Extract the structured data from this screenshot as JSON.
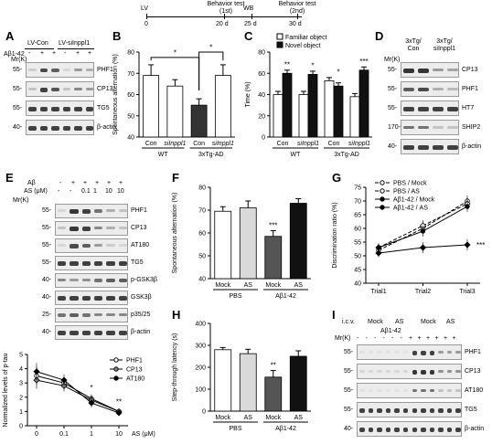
{
  "panels": {
    "A": {
      "label": "A",
      "groups": [
        "LV-Con",
        "LV-siInppl1"
      ],
      "abeta": "Aβ1-42",
      "mk": "Mr(K)",
      "markers": [
        "PHF1",
        "CP13",
        "TG5",
        "β-actin"
      ],
      "mw": [
        "55-",
        "55-",
        "55-",
        "40-"
      ],
      "signs": [
        "-",
        "+",
        "+",
        "-",
        "+",
        "+"
      ]
    },
    "timeline": {
      "points": [
        "0",
        "20 d",
        "25 d",
        "30 d"
      ],
      "labels": [
        "LV",
        "Behavior test (1st)",
        "WB",
        "Behavior test (2nd)"
      ]
    },
    "B": {
      "label": "B",
      "ylabel": "Spontaneous alternation (%)",
      "categories": [
        "Con",
        "siInppl1",
        "Con",
        "siInppl1"
      ],
      "groups": [
        "WT",
        "3xTg-AD"
      ]
    },
    "C": {
      "label": "C",
      "ylabel": "Time (%)",
      "legend": [
        "Familiar object",
        "Novel object"
      ],
      "categories": [
        "Con",
        "siInppl1",
        "Con",
        "siInppl1"
      ],
      "groups": [
        "WT",
        "3xTg-AD"
      ],
      "stars": [
        "**",
        "*",
        "*",
        "***"
      ]
    },
    "D": {
      "label": "D",
      "groups": [
        "3xTg/ Con",
        "3xTg/ siInppl1"
      ],
      "mk": "Mr(K)",
      "markers": [
        "CP13",
        "PHF1",
        "HT7",
        "SHIP2",
        "β-actin"
      ],
      "mw": [
        "55-",
        "55-",
        "55-",
        "170-",
        "40-"
      ]
    },
    "E": {
      "label": "E",
      "abeta": "Aβ",
      "as": "AS (μM)",
      "mk": "Mr(K)",
      "signs": [
        "-",
        "+",
        "+",
        "+",
        "+",
        "+"
      ],
      "doses": [
        "-",
        "-",
        "0.1",
        "1",
        "10",
        "10"
      ],
      "markers": [
        "PHF1",
        "CP13",
        "AT180",
        "TG5",
        "p-GSK3β",
        "GSK3β",
        "p35/25",
        "β-actin"
      ],
      "mw": [
        "55-",
        "55-",
        "55-",
        "55-",
        "40-",
        "40-",
        "25-",
        "40-"
      ]
    },
    "Eline": {
      "ylabel": "Normalized levels of p-tau",
      "xlabel": "AS (μM)",
      "legend": [
        "PHF1",
        "CP13",
        "AT180"
      ],
      "stars": [
        "*",
        "**"
      ]
    },
    "F": {
      "label": "F",
      "ylabel": "Spontaneous alternation (%)",
      "categories": [
        "Mock",
        "AS",
        "Mock",
        "AS"
      ],
      "groups": [
        "PBS",
        "Aβ1-42"
      ],
      "stars": [
        "***"
      ]
    },
    "G": {
      "label": "G",
      "ylabel": "Discrimination ratio (%)",
      "legend": [
        "PBS / Mock",
        "PBS / AS",
        "Aβ1-42 / Mock",
        "Aβ1-42 / AS"
      ],
      "stars": [
        "***"
      ]
    },
    "H": {
      "label": "H",
      "ylabel": "Step-through latency (s)",
      "categories": [
        "Mock",
        "AS",
        "Mock",
        "AS"
      ],
      "groups": [
        "PBS",
        "Aβ1-42"
      ],
      "stars": [
        "**"
      ]
    },
    "I": {
      "label": "I",
      "icv": "i.c.v.",
      "mk": "Mr(K)",
      "abeta": "Aβ1-42",
      "treat": [
        "Mock",
        "AS",
        "Mock",
        "AS"
      ],
      "markers": [
        "PHF1",
        "CP13",
        "AT180",
        "TG5",
        "β-actin"
      ],
      "mw": [
        "55-",
        "55-",
        "55-",
        "55-",
        "40-"
      ]
    }
  },
  "chart_data": [
    {
      "type": "bar",
      "id": "B",
      "categories": [
        "Con",
        "siInppl1",
        "Con",
        "siInppl1"
      ],
      "values": [
        69,
        64,
        55,
        69
      ],
      "errors": [
        5,
        3,
        3,
        5
      ],
      "ylim": [
        40,
        80
      ],
      "yticks": [
        40,
        50,
        60,
        70,
        80
      ],
      "stars": [
        "*",
        "*"
      ]
    },
    {
      "type": "bar",
      "id": "C",
      "categories": [
        "Con",
        "siInppl1",
        "Con",
        "siInppl1"
      ],
      "series": [
        {
          "name": "Familiar object",
          "values": [
            40,
            40,
            53,
            38
          ]
        },
        {
          "name": "Novel object",
          "values": [
            60,
            59,
            48,
            63
          ]
        }
      ],
      "errors": [
        [
          3,
          3,
          3,
          3
        ],
        [
          3,
          3,
          3,
          3
        ]
      ],
      "ylim": [
        0,
        80
      ],
      "yticks": [
        0,
        20,
        40,
        60,
        80
      ]
    },
    {
      "type": "line",
      "id": "Eline",
      "x": [
        "0",
        "0.1",
        "1",
        "10"
      ],
      "series": [
        {
          "name": "PHF1",
          "values": [
            3.5,
            3.0,
            1.9,
            1.0
          ]
        },
        {
          "name": "CP13",
          "values": [
            3.2,
            2.8,
            1.8,
            1.0
          ]
        },
        {
          "name": "AT180",
          "values": [
            3.8,
            3.2,
            1.6,
            0.9
          ]
        }
      ],
      "errors": [
        0.6,
        0.4,
        0.3,
        0.1
      ],
      "ylim": [
        0,
        5
      ],
      "yticks": [
        0,
        1,
        2,
        3,
        4,
        5
      ],
      "xticks": [
        "0",
        "0.1",
        "1",
        "10"
      ]
    },
    {
      "type": "bar",
      "id": "F",
      "categories": [
        "Mock",
        "AS",
        "Mock",
        "AS"
      ],
      "values": [
        69.5,
        71,
        58.5,
        73
      ],
      "errors": [
        2,
        3,
        2.5,
        2
      ],
      "ylim": [
        40,
        80
      ],
      "yticks": [
        40,
        50,
        60,
        70,
        80
      ]
    },
    {
      "type": "line",
      "id": "G",
      "x": [
        "Trial1",
        "Trial2",
        "Trial3"
      ],
      "series": [
        {
          "name": "PBS / Mock",
          "values": [
            52,
            60,
            70
          ]
        },
        {
          "name": "PBS / AS",
          "values": [
            53,
            61,
            69
          ]
        },
        {
          "name": "Aβ1-42 / Mock",
          "values": [
            53,
            59,
            68
          ]
        },
        {
          "name": "Aβ1-42 / AS",
          "values": [
            51,
            53,
            54
          ]
        }
      ],
      "errors": [
        1.5,
        2,
        2
      ],
      "ylim": [
        40,
        75
      ],
      "yticks": [
        40,
        45,
        50,
        55,
        60,
        65,
        70,
        75
      ]
    },
    {
      "type": "bar",
      "id": "H",
      "categories": [
        "Mock",
        "AS",
        "Mock",
        "AS"
      ],
      "values": [
        280,
        262,
        155,
        250
      ],
      "errors": [
        10,
        20,
        30,
        25
      ],
      "ylim": [
        0,
        400
      ],
      "yticks": [
        0,
        100,
        200,
        300,
        400
      ]
    }
  ]
}
